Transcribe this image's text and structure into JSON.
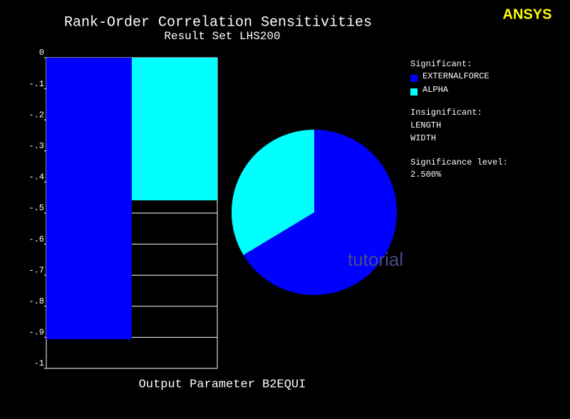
{
  "logo": "ANSYS",
  "watermark": "tutorial",
  "chart_data": {
    "type": "bar",
    "title": "Rank-Order Correlation Sensitivities",
    "subtitle": "Result Set LHS200",
    "x_label": "Output Parameter B2EQUI",
    "series": [
      {
        "name": "EXTERNALFORCE",
        "color": "#0000ff",
        "values": [
          -0.906
        ]
      },
      {
        "name": "ALPHA",
        "color": "#00ffff",
        "values": [
          -0.459
        ]
      }
    ],
    "ylim": [
      -1,
      0
    ],
    "yticks": [
      0,
      {
        "value": -0.1,
        "label": "-.1"
      },
      {
        "value": -0.2,
        "label": "-.2"
      },
      {
        "value": -0.3,
        "label": "-.3"
      },
      {
        "value": -0.4,
        "label": "-.4"
      },
      {
        "value": -0.5,
        "label": "-.5"
      },
      {
        "value": -0.6,
        "label": "-.6"
      },
      {
        "value": -0.7,
        "label": "-.7"
      },
      {
        "value": -0.8,
        "label": "-.8"
      },
      {
        "value": -0.9,
        "label": "-.9"
      },
      -1
    ],
    "grid": true,
    "legend_title": "Significant:",
    "insignificant_title": "Insignificant:",
    "insignificant": [
      "LENGTH",
      "WIDTH"
    ],
    "significance_title": "Significance level:",
    "significance_level": 2.5,
    "significance_level_label": "2.500%"
  }
}
